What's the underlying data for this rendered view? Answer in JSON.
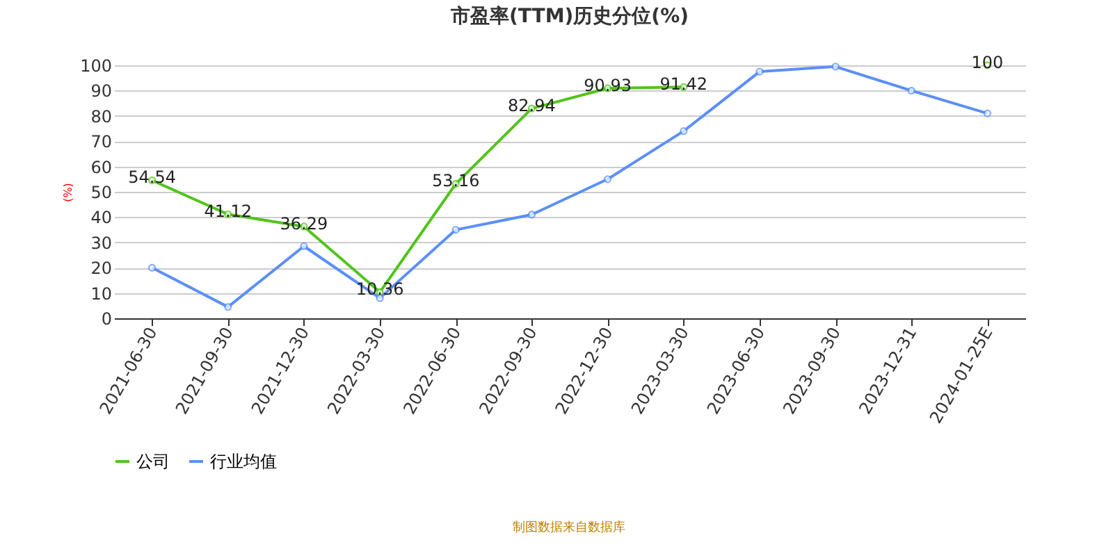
{
  "chart_data": {
    "type": "line",
    "title": "市盈率(TTM)历史分位(%)",
    "ylabel": "(%)",
    "categories": [
      "2021-06-30",
      "2021-09-30",
      "2021-12-30",
      "2022-03-30",
      "2022-06-30",
      "2022-09-30",
      "2022-12-30",
      "2023-03-30",
      "2023-06-30",
      "2023-09-30",
      "2023-12-31",
      "2024-01-25E"
    ],
    "series": [
      {
        "name": "公司",
        "color": "#52c41a",
        "values": [
          54.54,
          41.12,
          36.29,
          10.36,
          53.16,
          82.94,
          90.93,
          91.42,
          null,
          null,
          null,
          100
        ],
        "data_labels": true
      },
      {
        "name": "行业均值",
        "color": "#5b8ff9",
        "values": [
          20,
          4.5,
          28.5,
          8,
          35,
          41,
          55,
          74,
          97.5,
          99.5,
          90,
          81
        ]
      }
    ],
    "ylim": [
      0,
      100
    ],
    "yticks": [
      0,
      10,
      20,
      30,
      40,
      50,
      60,
      70,
      80,
      90,
      100
    ],
    "grid": "y",
    "legend": "bottom",
    "marker": "circle",
    "line_style": "solid",
    "annotations": [
      "制图数据来自数据库"
    ]
  }
}
